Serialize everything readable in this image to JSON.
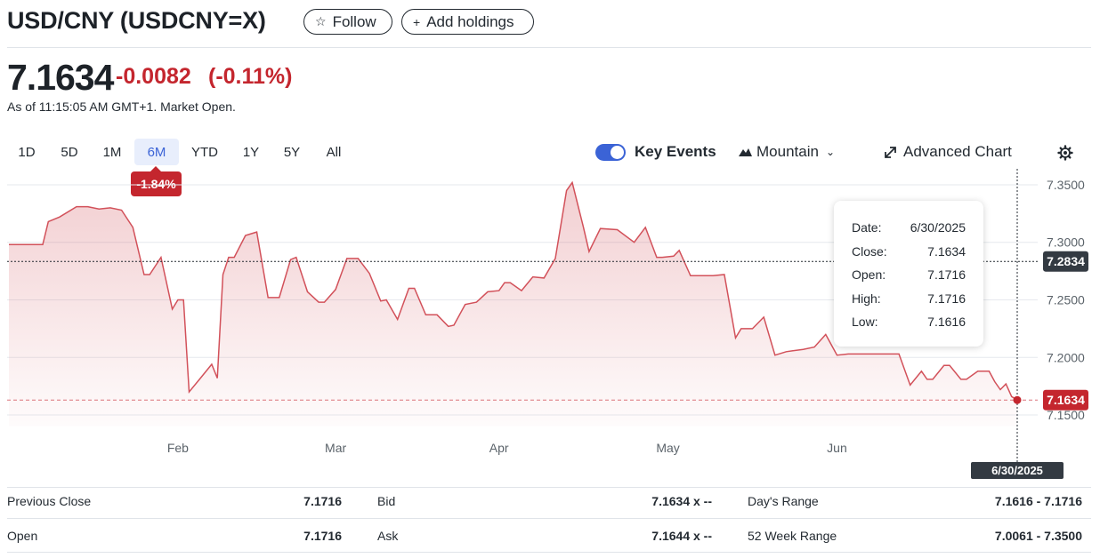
{
  "header": {
    "title": "USD/CNY (USDCNY=X)",
    "follow_label": "Follow",
    "add_holdings_label": "Add holdings"
  },
  "quote": {
    "price": "7.1634",
    "change": "-0.0082",
    "change_pct": "(-0.11%)",
    "as_of": "As of 11:15:05 AM GMT+1. Market Open."
  },
  "ranges": [
    "1D",
    "5D",
    "1M",
    "6M",
    "YTD",
    "1Y",
    "5Y",
    "All"
  ],
  "active_range": "6M",
  "period_change": "-1.84%",
  "controls": {
    "key_events": "Key Events",
    "chart_type": "Mountain",
    "advanced_chart": "Advanced Chart"
  },
  "tooltip": {
    "date_label": "Date:",
    "date": "6/30/2025",
    "close_label": "Close:",
    "close": "7.1634",
    "open_label": "Open:",
    "open": "7.1716",
    "high_label": "High:",
    "high": "7.1716",
    "low_label": "Low:",
    "low": "7.1616"
  },
  "crosshair": {
    "price_label": "7.2834",
    "last_label": "7.1634",
    "date_label": "6/30/2025"
  },
  "colors": {
    "line": "#d2515a",
    "negative": "#c4262e",
    "accent": "#3b63d6"
  },
  "chart_data": {
    "type": "area",
    "ylim": [
      7.14,
      7.36
    ],
    "yticks": [
      7.15,
      7.2,
      7.25,
      7.3,
      7.35
    ],
    "ytick_labels": [
      "7.1500",
      "7.2000",
      "7.2500",
      "7.3000",
      "7.3500"
    ],
    "x_months": [
      "Feb",
      "Mar",
      "Apr",
      "May",
      "Jun"
    ],
    "x_month_index": [
      30,
      58,
      87,
      117,
      147
    ],
    "x_count": 179,
    "series": [
      {
        "points": [
          [
            0,
            7.298
          ],
          [
            6,
            7.298
          ],
          [
            7,
            7.318
          ],
          [
            9,
            7.322
          ],
          [
            12,
            7.331
          ],
          [
            14,
            7.331
          ],
          [
            16,
            7.329
          ],
          [
            18,
            7.33
          ],
          [
            20,
            7.328
          ],
          [
            22,
            7.313
          ],
          [
            24,
            7.272
          ],
          [
            25,
            7.272
          ],
          [
            27,
            7.287
          ],
          [
            29,
            7.242
          ],
          [
            30,
            7.25
          ],
          [
            31,
            7.25
          ],
          [
            32,
            7.17
          ],
          [
            34,
            7.182
          ],
          [
            36,
            7.194
          ],
          [
            37,
            7.182
          ],
          [
            38,
            7.272
          ],
          [
            39,
            7.287
          ],
          [
            40,
            7.287
          ],
          [
            42,
            7.306
          ],
          [
            44,
            7.309
          ],
          [
            46,
            7.252
          ],
          [
            48,
            7.252
          ],
          [
            50,
            7.285
          ],
          [
            51,
            7.287
          ],
          [
            53,
            7.257
          ],
          [
            55,
            7.248
          ],
          [
            56,
            7.248
          ],
          [
            58,
            7.259
          ],
          [
            60,
            7.286
          ],
          [
            62,
            7.286
          ],
          [
            64,
            7.273
          ],
          [
            66,
            7.249
          ],
          [
            67,
            7.25
          ],
          [
            69,
            7.233
          ],
          [
            71,
            7.26
          ],
          [
            72,
            7.26
          ],
          [
            74,
            7.237
          ],
          [
            76,
            7.237
          ],
          [
            78,
            7.227
          ],
          [
            79,
            7.228
          ],
          [
            81,
            7.246
          ],
          [
            83,
            7.248
          ],
          [
            85,
            7.257
          ],
          [
            87,
            7.258
          ],
          [
            88,
            7.265
          ],
          [
            89,
            7.265
          ],
          [
            91,
            7.258
          ],
          [
            93,
            7.27
          ],
          [
            95,
            7.269
          ],
          [
            97,
            7.286
          ],
          [
            99,
            7.345
          ],
          [
            100,
            7.352
          ],
          [
            102,
            7.313
          ],
          [
            103,
            7.292
          ],
          [
            105,
            7.312
          ],
          [
            108,
            7.311
          ],
          [
            111,
            7.3
          ],
          [
            113,
            7.313
          ],
          [
            115,
            7.287
          ],
          [
            116,
            7.287
          ],
          [
            118,
            7.288
          ],
          [
            119,
            7.293
          ],
          [
            121,
            7.271
          ],
          [
            123,
            7.271
          ],
          [
            125,
            7.271
          ],
          [
            127,
            7.272
          ],
          [
            129,
            7.217
          ],
          [
            130,
            7.225
          ],
          [
            132,
            7.225
          ],
          [
            134,
            7.235
          ],
          [
            136,
            7.202
          ],
          [
            138,
            7.205
          ],
          [
            141,
            7.207
          ],
          [
            143,
            7.209
          ],
          [
            145,
            7.22
          ],
          [
            147,
            7.202
          ],
          [
            149,
            7.203
          ],
          [
            153,
            7.203
          ],
          [
            157,
            7.203
          ],
          [
            158,
            7.203
          ],
          [
            160,
            7.176
          ],
          [
            162,
            7.188
          ],
          [
            163,
            7.181
          ],
          [
            164,
            7.181
          ],
          [
            166,
            7.193
          ],
          [
            167,
            7.193
          ],
          [
            169,
            7.181
          ],
          [
            170,
            7.181
          ],
          [
            172,
            7.188
          ],
          [
            174,
            7.188
          ],
          [
            175,
            7.179
          ],
          [
            176,
            7.172
          ],
          [
            177,
            7.177
          ],
          [
            178,
            7.166
          ],
          [
            179,
            7.163
          ]
        ]
      }
    ],
    "previous_close": 7.1716,
    "crosshair_value": 7.2834,
    "grid": true
  },
  "stats": {
    "rows": [
      [
        {
          "label": "Previous Close",
          "value": "7.1716"
        },
        {
          "label": "Bid",
          "value": "7.1634 x --"
        },
        {
          "label": "Day's Range",
          "value": "7.1616 - 7.1716"
        }
      ],
      [
        {
          "label": "Open",
          "value": "7.1716"
        },
        {
          "label": "Ask",
          "value": "7.1644 x --"
        },
        {
          "label": "52 Week Range",
          "value": "7.0061 - 7.3500"
        }
      ]
    ]
  }
}
